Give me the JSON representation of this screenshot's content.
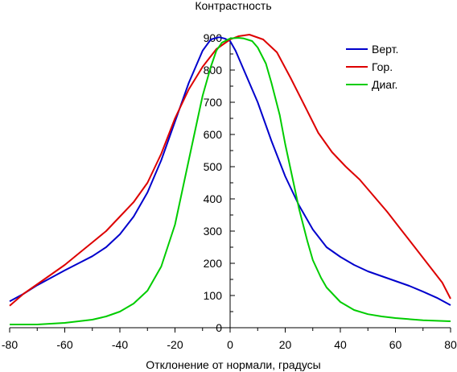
{
  "chart_data": {
    "type": "line",
    "title": "Контрастность",
    "xlabel": "Отклонение от нормали, градусы",
    "ylabel": "",
    "xlim": [
      -80,
      80
    ],
    "ylim": [
      0,
      900
    ],
    "x_ticks": [
      -80,
      -60,
      -40,
      -20,
      0,
      20,
      40,
      60,
      80
    ],
    "y_ticks": [
      0,
      100,
      200,
      300,
      400,
      500,
      600,
      700,
      800,
      900
    ],
    "grid": false,
    "legend_position": "top-right",
    "series": [
      {
        "name": "Верт.",
        "color": "#0000cc",
        "points": [
          [
            -80,
            82
          ],
          [
            -75,
            105
          ],
          [
            -70,
            132
          ],
          [
            -65,
            155
          ],
          [
            -60,
            178
          ],
          [
            -55,
            200
          ],
          [
            -50,
            222
          ],
          [
            -45,
            250
          ],
          [
            -40,
            290
          ],
          [
            -35,
            345
          ],
          [
            -30,
            420
          ],
          [
            -25,
            520
          ],
          [
            -20,
            640
          ],
          [
            -15,
            760
          ],
          [
            -10,
            860
          ],
          [
            -7,
            895
          ],
          [
            -4,
            902
          ],
          [
            -2,
            898
          ],
          [
            0,
            890
          ],
          [
            2,
            860
          ],
          [
            5,
            800
          ],
          [
            10,
            700
          ],
          [
            15,
            580
          ],
          [
            20,
            470
          ],
          [
            25,
            380
          ],
          [
            30,
            305
          ],
          [
            35,
            250
          ],
          [
            40,
            220
          ],
          [
            45,
            195
          ],
          [
            50,
            175
          ],
          [
            55,
            160
          ],
          [
            60,
            145
          ],
          [
            65,
            130
          ],
          [
            70,
            112
          ],
          [
            75,
            93
          ],
          [
            80,
            70
          ]
        ]
      },
      {
        "name": "Гор.",
        "color": "#dd0000",
        "points": [
          [
            -80,
            68
          ],
          [
            -75,
            105
          ],
          [
            -70,
            135
          ],
          [
            -65,
            165
          ],
          [
            -60,
            195
          ],
          [
            -55,
            230
          ],
          [
            -50,
            265
          ],
          [
            -45,
            300
          ],
          [
            -40,
            345
          ],
          [
            -35,
            390
          ],
          [
            -30,
            450
          ],
          [
            -25,
            540
          ],
          [
            -20,
            650
          ],
          [
            -15,
            740
          ],
          [
            -10,
            810
          ],
          [
            -5,
            865
          ],
          [
            0,
            895
          ],
          [
            3,
            905
          ],
          [
            7,
            910
          ],
          [
            12,
            895
          ],
          [
            17,
            855
          ],
          [
            22,
            775
          ],
          [
            27,
            690
          ],
          [
            32,
            605
          ],
          [
            37,
            545
          ],
          [
            42,
            500
          ],
          [
            47,
            460
          ],
          [
            52,
            410
          ],
          [
            57,
            360
          ],
          [
            62,
            305
          ],
          [
            67,
            250
          ],
          [
            72,
            195
          ],
          [
            77,
            140
          ],
          [
            80,
            90
          ]
        ]
      },
      {
        "name": "Диаг.",
        "color": "#00cc00",
        "points": [
          [
            -80,
            10
          ],
          [
            -70,
            10
          ],
          [
            -60,
            15
          ],
          [
            -50,
            25
          ],
          [
            -45,
            35
          ],
          [
            -40,
            50
          ],
          [
            -35,
            75
          ],
          [
            -30,
            115
          ],
          [
            -25,
            190
          ],
          [
            -20,
            320
          ],
          [
            -15,
            520
          ],
          [
            -12,
            640
          ],
          [
            -10,
            720
          ],
          [
            -7,
            810
          ],
          [
            -5,
            860
          ],
          [
            -3,
            885
          ],
          [
            0,
            898
          ],
          [
            3,
            900
          ],
          [
            5,
            898
          ],
          [
            8,
            890
          ],
          [
            10,
            870
          ],
          [
            13,
            820
          ],
          [
            15,
            760
          ],
          [
            18,
            660
          ],
          [
            20,
            570
          ],
          [
            23,
            450
          ],
          [
            25,
            370
          ],
          [
            28,
            270
          ],
          [
            30,
            210
          ],
          [
            33,
            155
          ],
          [
            35,
            125
          ],
          [
            40,
            80
          ],
          [
            45,
            55
          ],
          [
            50,
            42
          ],
          [
            55,
            35
          ],
          [
            60,
            30
          ],
          [
            70,
            23
          ],
          [
            80,
            20
          ]
        ]
      }
    ]
  }
}
